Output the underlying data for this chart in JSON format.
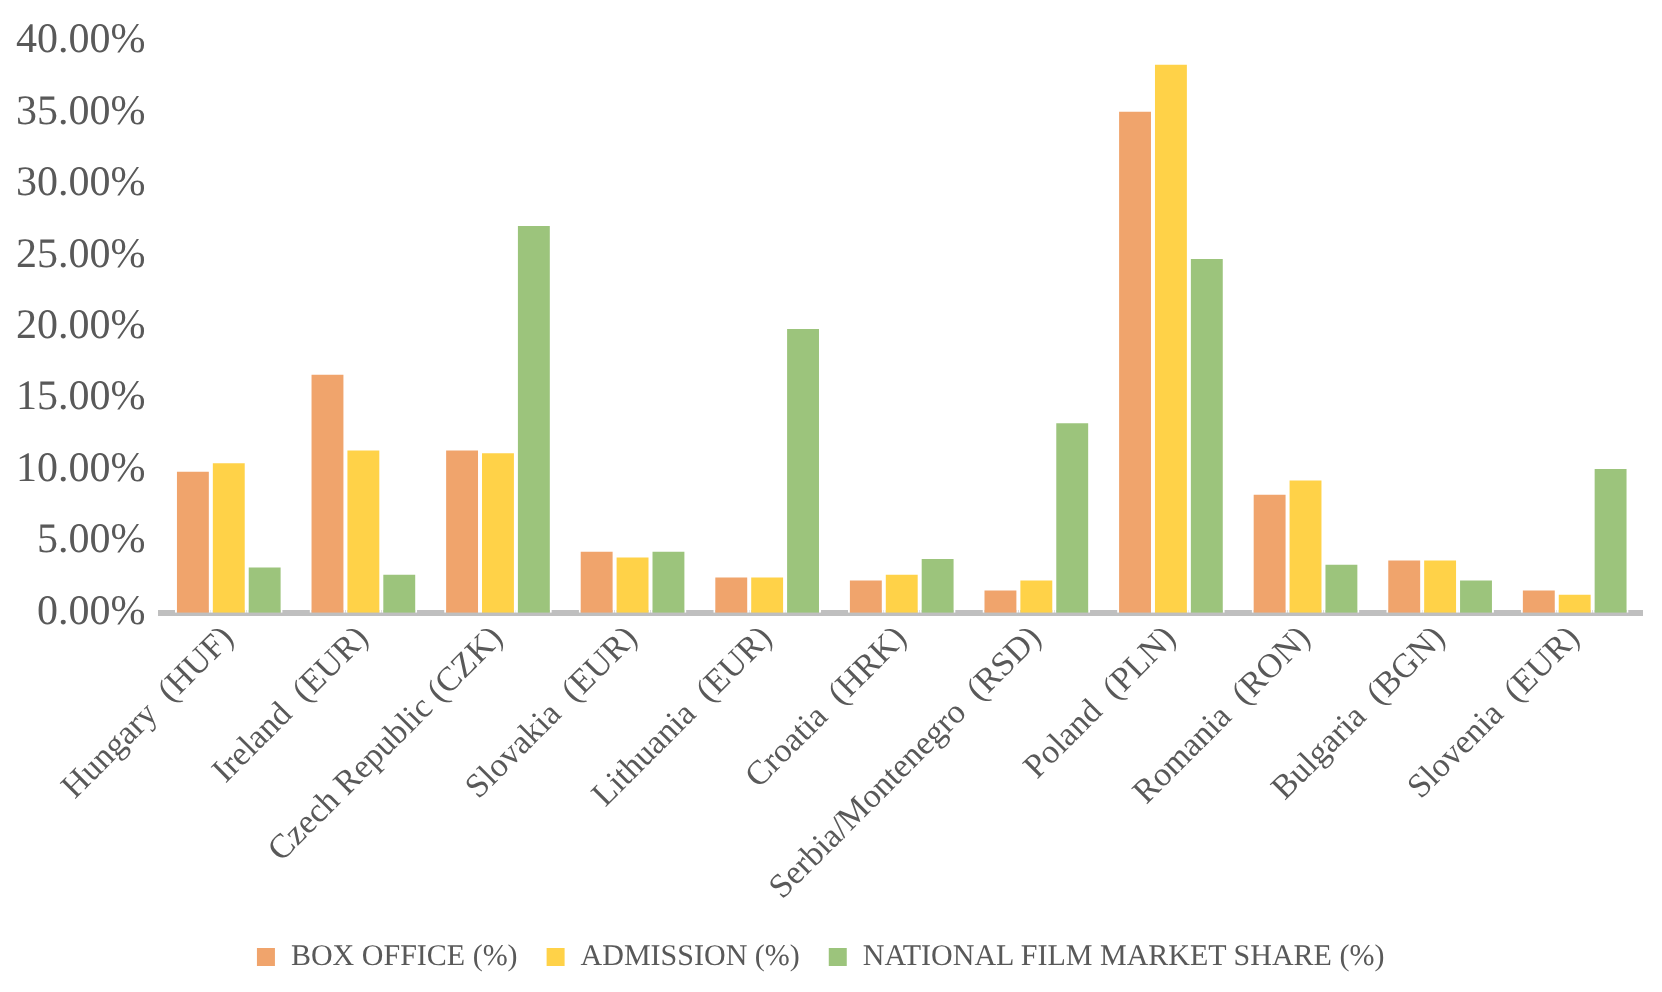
{
  "chart_data": {
    "type": "bar",
    "categories": [
      "Hungary  (HUF)",
      "Ireland  (EUR)",
      "Czech Republic (CZK)",
      "Slovakia  (EUR)",
      "Lithuania  (EUR)",
      "Croatia  (HRK)",
      "Serbia/Montenegro  (RSD)",
      "Poland  (PLN)",
      "Romania  (RON)",
      "Bulgaria  (BGN)",
      "Slovenia  (EUR)"
    ],
    "series": [
      {
        "name": "BOX OFFICE (%)",
        "color": "#f0a46c",
        "values": [
          10.0,
          16.8,
          11.5,
          4.4,
          2.6,
          2.4,
          1.7,
          35.2,
          8.4,
          3.8,
          1.7
        ]
      },
      {
        "name": "ADMISSION (%)",
        "color": "#ffd248",
        "values": [
          10.6,
          11.5,
          11.3,
          4.0,
          2.6,
          2.8,
          2.4,
          38.5,
          9.4,
          3.8,
          1.4
        ]
      },
      {
        "name": "NATIONAL FILM MARKET SHARE (%)",
        "color": "#9cc47c",
        "values": [
          3.3,
          2.8,
          27.2,
          4.4,
          20.0,
          3.9,
          13.4,
          24.9,
          3.5,
          2.4,
          10.2
        ]
      }
    ],
    "ylim": [
      0,
      40
    ],
    "yticks": [
      {
        "value": 0,
        "label": "0.00%"
      },
      {
        "value": 5,
        "label": "5.00%"
      },
      {
        "value": 10,
        "label": "10.00%"
      },
      {
        "value": 15,
        "label": "15.00%"
      },
      {
        "value": 20,
        "label": "20.00%"
      },
      {
        "value": 25,
        "label": "25.00%"
      },
      {
        "value": 30,
        "label": "30.00%"
      },
      {
        "value": 35,
        "label": "35.00%"
      },
      {
        "value": 40,
        "label": "40.00%"
      }
    ],
    "grid": false,
    "legend": "bottom"
  }
}
